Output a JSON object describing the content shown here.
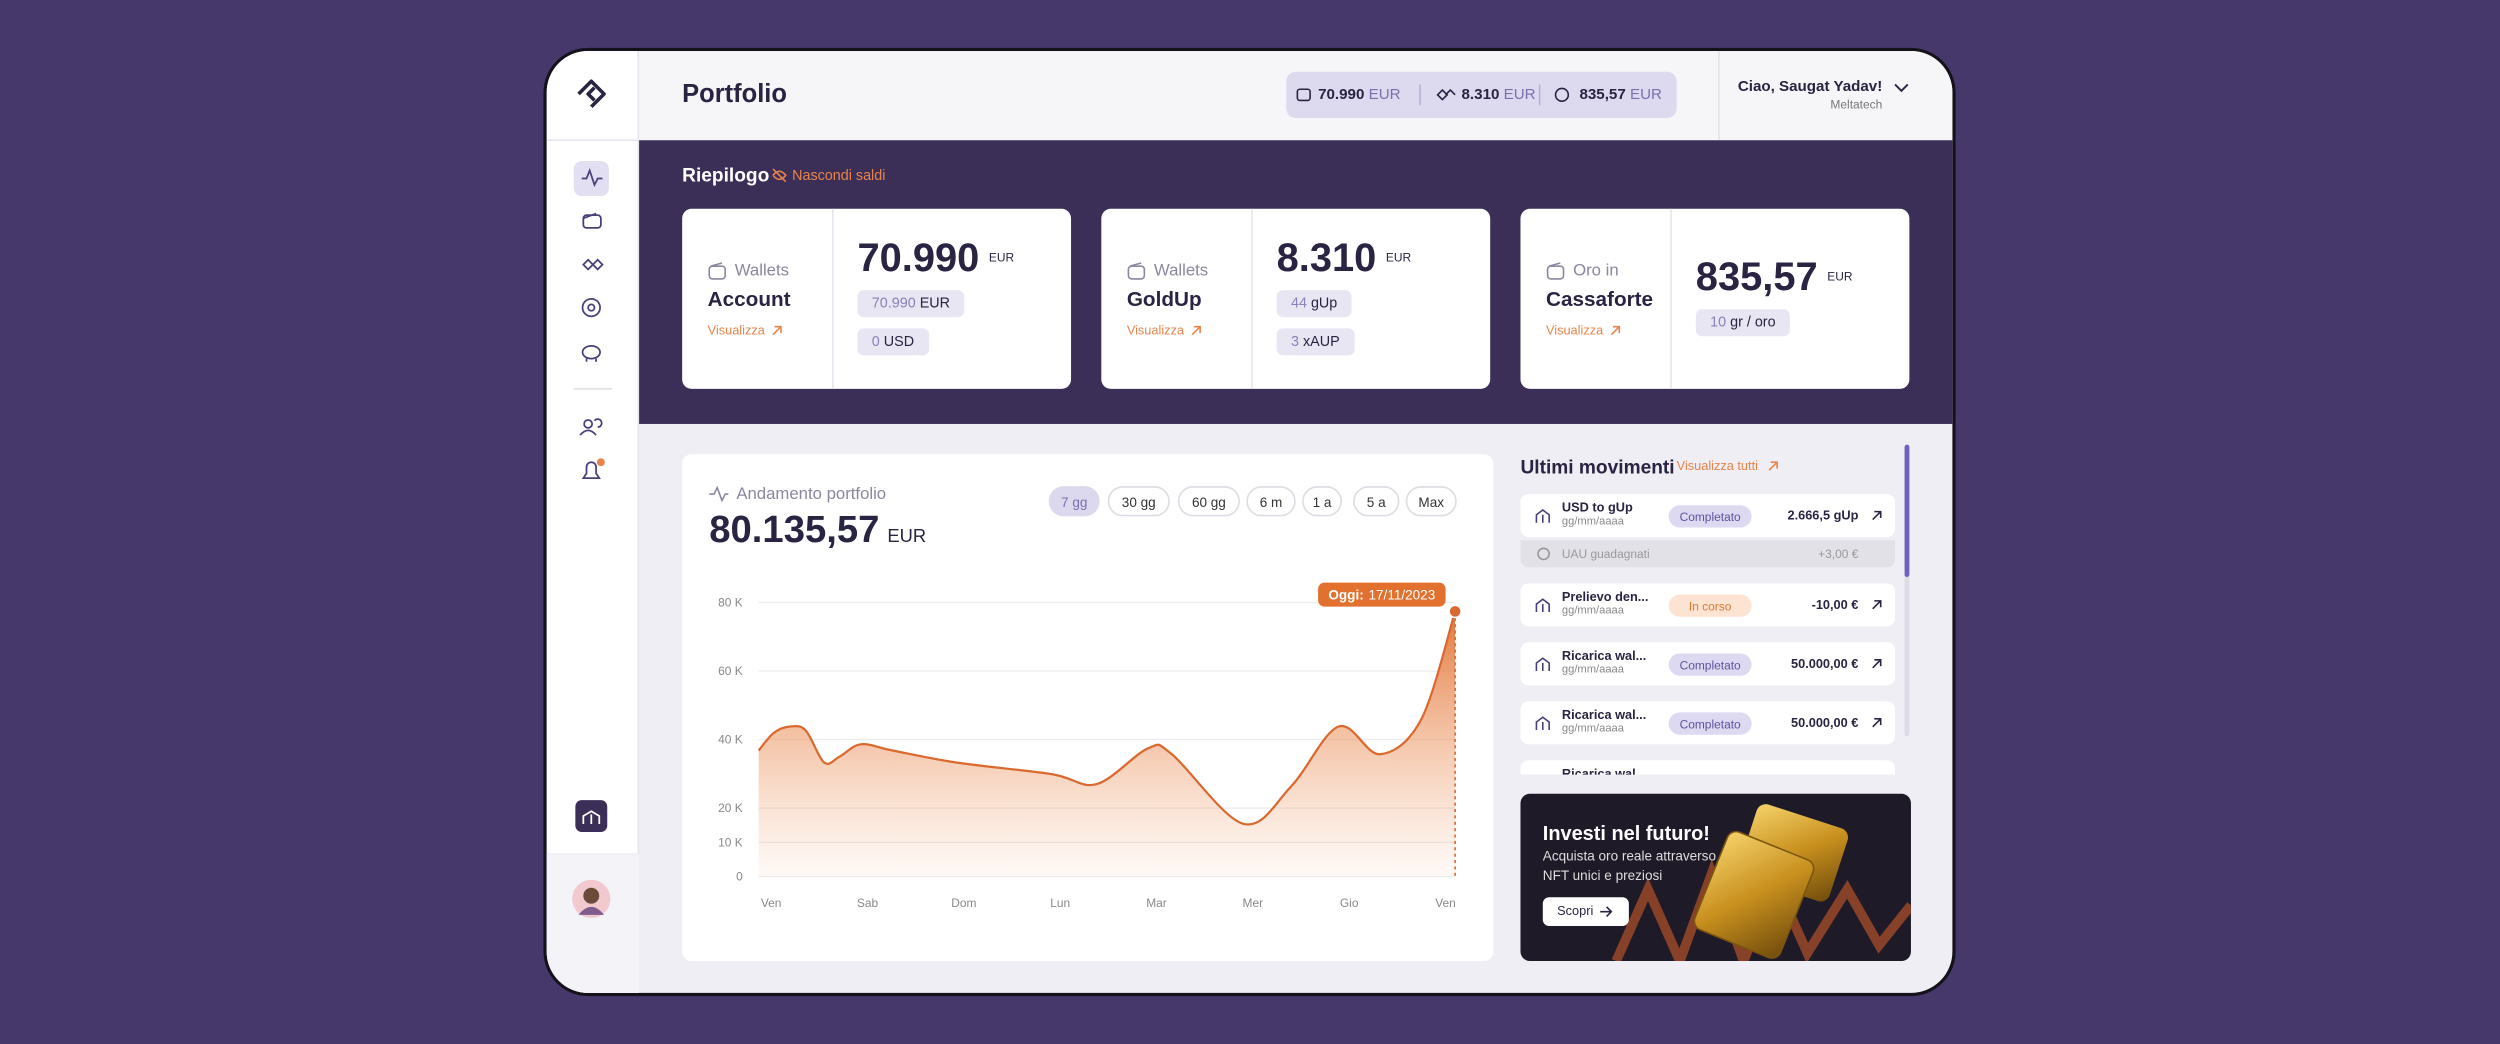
{
  "header": {
    "title": "Portfolio",
    "balances": [
      {
        "value": "70.990",
        "unit": "EUR"
      },
      {
        "value": "8.310",
        "unit": "EUR"
      },
      {
        "value": "835,57",
        "unit": "EUR"
      }
    ],
    "greeting": "Ciao, Saugat Yadav!",
    "company": "Meltatech"
  },
  "summary": {
    "title": "Riepilogo",
    "hide_label": "Nascondi saldi",
    "cards": [
      {
        "kicker": "Wallets",
        "name": "Account",
        "link": "Visualizza",
        "amount": "70.990",
        "unit": "EUR",
        "chips": [
          {
            "value": "70.990",
            "unit": "EUR"
          },
          {
            "value": "0",
            "unit": "USD"
          }
        ]
      },
      {
        "kicker": "Wallets",
        "name": "GoldUp",
        "link": "Visualizza",
        "amount": "8.310",
        "unit": "EUR",
        "chips": [
          {
            "value": "44",
            "unit": "gUp"
          },
          {
            "value": "3",
            "unit": "xAUP"
          }
        ]
      },
      {
        "kicker": "Oro in",
        "name": "Cassaforte",
        "link": "Visualizza",
        "amount": "835,57",
        "unit": "EUR",
        "chips": [
          {
            "value": "10",
            "unit": "gr / oro"
          }
        ]
      }
    ]
  },
  "chart_data": {
    "type": "area",
    "title": "Andamento portfolio",
    "total": "80.135,57",
    "total_unit": "EUR",
    "ranges": [
      "7 gg",
      "30 gg",
      "60 gg",
      "6 m",
      "1 a",
      "5 a",
      "Max"
    ],
    "x": [
      -0.13,
      0.03,
      0.2,
      0.36,
      0.55,
      0.71,
      0.93,
      1.26,
      1.92,
      2.91,
      3.38,
      3.91,
      4.16,
      4.9,
      5.4,
      5.89,
      6.32,
      6.75,
      7.1
    ],
    "values": [
      36800,
      42000,
      43800,
      42600,
      33300,
      35000,
      38600,
      36800,
      33300,
      29900,
      27000,
      37400,
      35700,
      15400,
      26400,
      43800,
      35700,
      46000,
      77400
    ],
    "color": "#d9692e",
    "xlim": [
      -0.13,
      7.1
    ],
    "xticks": [
      {
        "value": 0,
        "label": "Ven"
      },
      {
        "value": 1,
        "label": "Sab"
      },
      {
        "value": 2,
        "label": "Dom"
      },
      {
        "value": 3,
        "label": "Lun"
      },
      {
        "value": 4,
        "label": "Mar"
      },
      {
        "value": 5,
        "label": "Mer"
      },
      {
        "value": 6,
        "label": "Gio"
      },
      {
        "value": 7,
        "label": "Ven"
      }
    ],
    "ylim": [
      0,
      80000
    ],
    "yticks": [
      0,
      {
        "value": 10000,
        "label": "10 K"
      },
      {
        "value": 20000,
        "label": "20 K"
      },
      {
        "value": 40000,
        "label": "40 K"
      },
      {
        "value": 60000,
        "label": "60 K"
      },
      {
        "value": 80000,
        "label": "80 K"
      }
    ],
    "grid": true,
    "annotation_label": "Oggi:",
    "annotation_date": "17/11/2023"
  },
  "movements": {
    "title": "Ultimi movimenti",
    "view_all": "Visualizza tutti",
    "items": [
      {
        "title": "USD to gUp",
        "date": "gg/mm/aaaa",
        "status": "Completato",
        "amount": "2.666,5 gUp"
      },
      {
        "title": "Prelievo den...",
        "date": "gg/mm/aaaa",
        "status": "In corso",
        "amount": "-10,00 €"
      },
      {
        "title": "Ricarica  wal...",
        "date": "gg/mm/aaaa",
        "status": "Completato",
        "amount": "50.000,00 €"
      },
      {
        "title": "Ricarica wal...",
        "date": "gg/mm/aaaa",
        "status": "Completato",
        "amount": "50.000,00 €"
      },
      {
        "title": "Ricarica wal..."
      }
    ],
    "bonus": {
      "label": "UAU guadagnati",
      "amount": "+3,00 €"
    }
  },
  "promo": {
    "title": "Investi nel futuro!",
    "lines": [
      "Acquista oro reale attraverso",
      "NFT unici e preziosi"
    ],
    "button": "Scopri"
  }
}
